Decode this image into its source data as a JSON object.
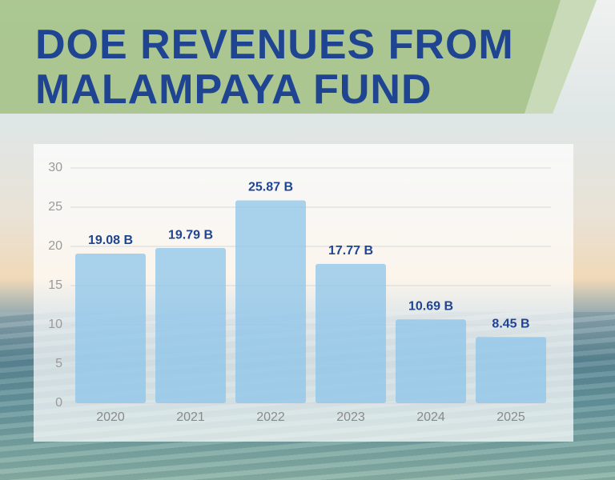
{
  "chart_data": {
    "type": "bar",
    "title": "DOE REVENUES FROM MALAMPAYA FUND",
    "categories": [
      "2020",
      "2021",
      "2022",
      "2023",
      "2024",
      "2025"
    ],
    "values": [
      19.08,
      19.79,
      25.87,
      17.77,
      10.69,
      8.45
    ],
    "value_labels": [
      "19.08 B",
      "19.79 B",
      "25.87 B",
      "17.77 B",
      "10.69 B",
      "8.45 B"
    ],
    "color": "#8cc4ea",
    "ylim": [
      0,
      30
    ],
    "yticks": [
      0,
      5,
      10,
      15,
      20,
      25,
      30
    ],
    "grid": true
  }
}
